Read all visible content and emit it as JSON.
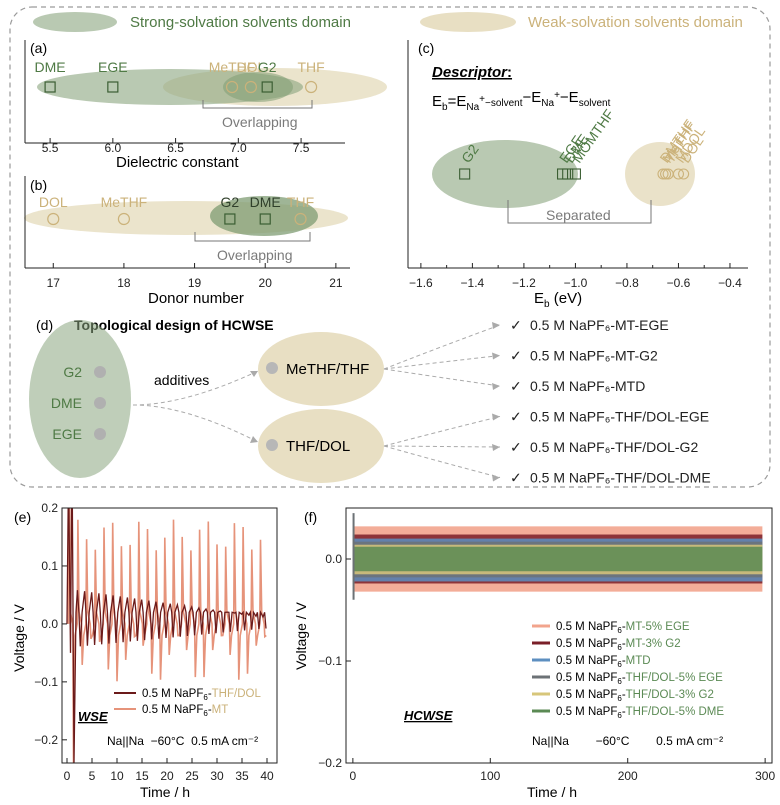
{
  "colors": {
    "strong": "#8aa57f",
    "weak": "#e8dfc3",
    "green_text": "#4f7a45",
    "tan_text": "#cbb27a",
    "bracket": "#777777",
    "dark_red": "#6b1a1a",
    "salmon": "#e6937a",
    "red_series": "#f2a48d",
    "maroon": "#7a1f28",
    "blue": "#5d8fc0",
    "gray": "#6c7276",
    "yellow": "#d7c67a",
    "green_series": "#5b8a54"
  },
  "legend_top": {
    "strong": "Strong-solvation solvents domain",
    "weak": "Weak-solvation solvents domain"
  },
  "panel_labels": {
    "a": "(a)",
    "b": "(b)",
    "c": "(c)",
    "d": "(d)",
    "e": "(e)",
    "f": "(f)"
  },
  "chart_data": [
    {
      "panel": "a",
      "type": "scatter",
      "xlabel": "Dielectric constant",
      "xlim": [
        5.3,
        7.85
      ],
      "xticks": [
        "5.5",
        "6.0",
        "6.5",
        "7.0",
        "7.5"
      ],
      "points": [
        {
          "label": "DME",
          "x": 5.5,
          "group": "strong"
        },
        {
          "label": "EGE",
          "x": 6.0,
          "group": "strong"
        },
        {
          "label": "MeTHF",
          "x": 6.95,
          "group": "weak"
        },
        {
          "label": "DOL",
          "x": 7.1,
          "group": "weak"
        },
        {
          "label": "G2",
          "x": 7.23,
          "group": "strong"
        },
        {
          "label": "THF",
          "x": 7.58,
          "group": "weak"
        }
      ],
      "annotation": "Overlapping"
    },
    {
      "panel": "b",
      "type": "scatter",
      "xlabel": "Donor number",
      "xlim": [
        16.6,
        21.2
      ],
      "xticks": [
        "17",
        "18",
        "19",
        "20",
        "21"
      ],
      "points": [
        {
          "label": "DOL",
          "x": 17.0,
          "group": "weak"
        },
        {
          "label": "MeTHF",
          "x": 18.0,
          "group": "weak"
        },
        {
          "label": "G2",
          "x": 19.5,
          "group": "strong"
        },
        {
          "label": "DME",
          "x": 20.0,
          "group": "strong"
        },
        {
          "label": "THF",
          "x": 20.5,
          "group": "weak"
        }
      ],
      "annotation": "Overlapping"
    },
    {
      "panel": "c",
      "type": "scatter",
      "title": "Descriptor",
      "xlabel": "Eb (eV)",
      "xlim": [
        -1.65,
        -0.33
      ],
      "xticks": [
        "-1.6",
        "-1.4",
        "-1.2",
        "-1.0",
        "-0.8",
        "-0.6",
        "-0.4"
      ],
      "points": [
        {
          "label": "G2",
          "x": -1.43,
          "group": "strong"
        },
        {
          "label": "EGE",
          "x": -1.05,
          "group": "strong"
        },
        {
          "label": "DME",
          "x": -1.03,
          "group": "strong"
        },
        {
          "label": "MOMTHF",
          "x": -1.0,
          "group": "strong"
        },
        {
          "label": "DMTHF",
          "x": -0.66,
          "group": "weak"
        },
        {
          "label": "MeTHF",
          "x": -0.65,
          "group": "weak"
        },
        {
          "label": "THF",
          "x": -0.64,
          "group": "weak"
        },
        {
          "label": "MDOL",
          "x": -0.6,
          "group": "weak"
        },
        {
          "label": "DOL",
          "x": -0.58,
          "group": "weak"
        }
      ],
      "annotation": "Separated"
    },
    {
      "panel": "e",
      "type": "line",
      "xlabel": "Time / h",
      "ylabel": "Voltage / V",
      "xlim": [
        -1,
        42
      ],
      "ylim": [
        -0.24,
        0.2
      ],
      "xticks": [
        "0",
        "5",
        "10",
        "15",
        "20",
        "25",
        "30",
        "35",
        "40"
      ],
      "yticks": [
        "-0.2",
        "-0.1",
        "0.0",
        "0.1",
        "0.2"
      ],
      "series": [
        {
          "name": "0.5 M NaPF6-THF/DOL",
          "end_hours": 40,
          "spike_top": 0.06,
          "spike_bottom": -0.04
        },
        {
          "name": "0.5 M NaPF6-MT",
          "end_hours": 40,
          "spike_top": 0.18,
          "spike_bottom": -0.1
        }
      ],
      "tag": "WSE",
      "conditions": "Na||Na  −60°C  0.5 mA cm⁻²"
    },
    {
      "panel": "f",
      "type": "area",
      "xlabel": "Time / h",
      "ylabel": "Voltage / V",
      "xlim": [
        -5,
        305
      ],
      "ylim": [
        -0.2,
        0.05
      ],
      "xticks": [
        "0",
        "100",
        "200",
        "300"
      ],
      "yticks": [
        "-0.2",
        "-0.1",
        "0.0"
      ],
      "series": [
        {
          "name": "0.5 M NaPF6-MT-5% EGE",
          "upper": 0.032,
          "lower": -0.032
        },
        {
          "name": "0.5 M NaPF6-MT-3% G2",
          "upper": 0.024,
          "lower": -0.024
        },
        {
          "name": "0.5 M NaPF6-MTD",
          "upper": 0.02,
          "lower": -0.022
        },
        {
          "name": "0.5 M NaPF6-THF/DOL-5% EGE",
          "upper": 0.017,
          "lower": -0.018
        },
        {
          "name": "0.5 M NaPF6-THF/DOL-3% G2",
          "upper": 0.014,
          "lower": -0.015
        },
        {
          "name": "0.5 M NaPF6-THF/DOL-5% DME",
          "upper": 0.012,
          "lower": -0.012
        }
      ],
      "tag": "HCWSE",
      "conditions": "Na||Na        −60°C        0.5 mA cm⁻²"
    }
  ],
  "panel_c_text": {
    "descriptor": "Descriptor",
    "colon": ":"
  },
  "panel_d": {
    "title": "Topological design of HCWSE",
    "strong_items": [
      "G2",
      "DME",
      "EGE"
    ],
    "additives_label": "additives",
    "weak_groups": [
      "MeTHF/THF",
      "THF/DOL"
    ],
    "electrolytes": [
      "0.5 M NaPF₆-MT-EGE",
      "0.5 M NaPF₆-MT-G2",
      "0.5 M NaPF₆-MTD",
      "0.5 M NaPF₆-THF/DOL-EGE",
      "0.5 M NaPF₆-THF/DOL-G2",
      "0.5 M NaPF₆-THF/DOL-DME"
    ]
  }
}
